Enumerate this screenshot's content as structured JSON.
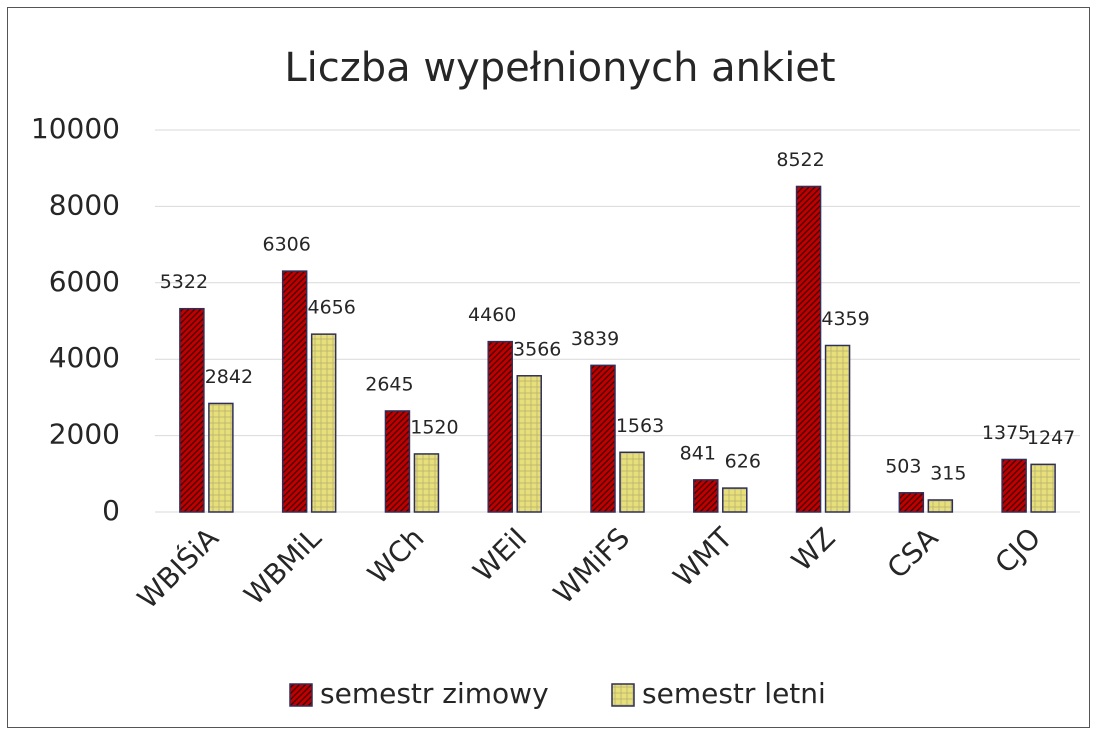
{
  "chart_data": {
    "type": "bar",
    "title": "Liczba wypełnionych ankiet",
    "categories": [
      "WBIŚiA",
      "WBMiL",
      "WCh",
      "WEiI",
      "WMiFS",
      "WMT",
      "WZ",
      "CSA",
      "CJO"
    ],
    "series": [
      {
        "name": "semestr zimowy",
        "color": "#c00000",
        "values": [
          5322,
          6306,
          2645,
          4460,
          3839,
          841,
          8522,
          503,
          1375
        ]
      },
      {
        "name": "semestr letni",
        "color": "#e6df7a",
        "values": [
          2842,
          4656,
          1520,
          3566,
          1563,
          626,
          4359,
          315,
          1247
        ]
      }
    ],
    "ylim": [
      0,
      10000
    ],
    "yticks": [
      0,
      2000,
      4000,
      6000,
      8000,
      10000
    ],
    "grid": true,
    "legend": "bottom"
  }
}
